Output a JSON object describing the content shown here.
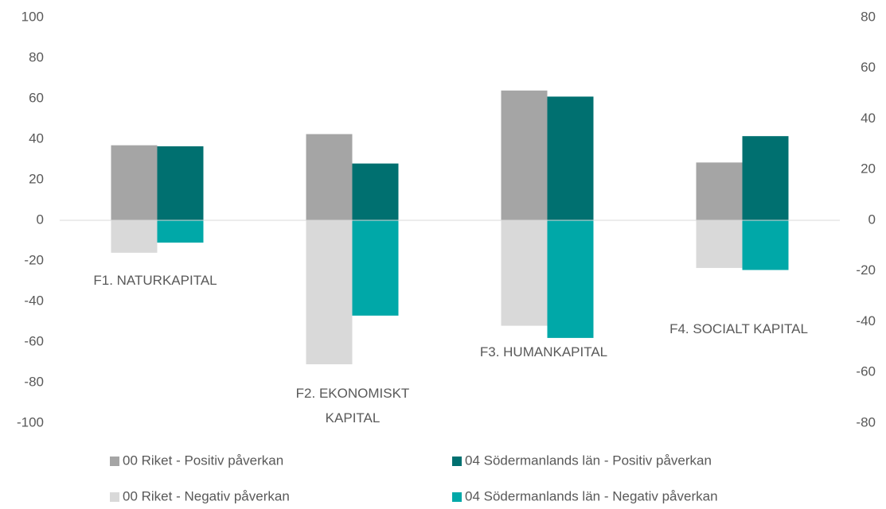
{
  "chart_data": {
    "type": "bar",
    "categories": [
      "F1. NATURKAPITAL",
      "F2. EKONOMISKT KAPITAL",
      "F3. HUMANKAPITAL",
      "F4. SOCIALT KAPITAL"
    ],
    "series": [
      {
        "name": "00 Riket - Positiv påverkan",
        "color": "#a5a5a5",
        "values": [
          37,
          42.5,
          64,
          28.5
        ]
      },
      {
        "name": "04 Södermanlands län - Positiv påverkan",
        "color": "#007070",
        "values": [
          36.5,
          28,
          61,
          41.5
        ]
      },
      {
        "name": "00 Riket - Negativ påverkan",
        "color": "#d9d9d9",
        "values": [
          -16,
          -71,
          -52,
          -23.5
        ]
      },
      {
        "name": "04 Södermanlands län - Negativ påverkan",
        "color": "#00a8a8",
        "values": [
          -11,
          -47,
          -58,
          -24.5
        ]
      }
    ],
    "ylim": [
      -100,
      100
    ],
    "yticks": [
      -100,
      -80,
      -60,
      -40,
      -20,
      0,
      20,
      40,
      60,
      80,
      100
    ],
    "y2lim": [
      -80,
      80
    ],
    "y2ticks": [
      -80,
      -60,
      -40,
      -20,
      0,
      20,
      40,
      60,
      80
    ],
    "grid": false
  }
}
